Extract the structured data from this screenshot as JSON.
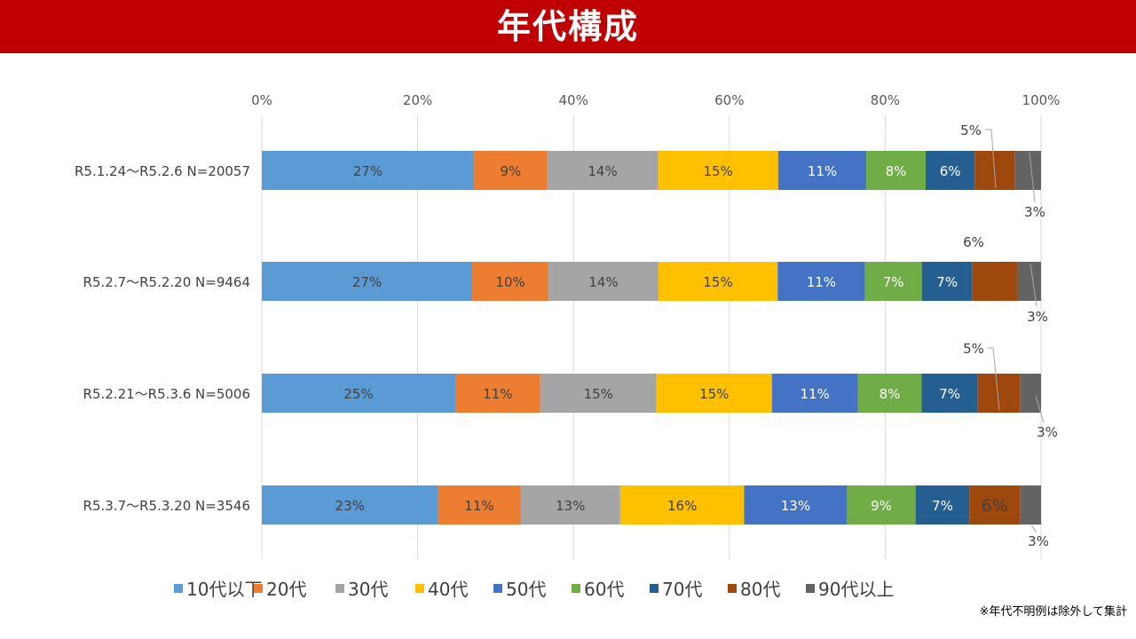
{
  "header": {
    "title": "年代構成"
  },
  "footnote": "※年代不明例は除外して集計",
  "colors": {
    "header_bg": "#c00000",
    "series": [
      "#5b9bd5",
      "#ed7d31",
      "#a5a5a5",
      "#ffc000",
      "#4472c4",
      "#70ad47",
      "#255e91",
      "#9e480e",
      "#636363"
    ]
  },
  "chart_data": {
    "type": "bar",
    "orientation": "horizontal",
    "stacked": "percent",
    "xlim": [
      0,
      100
    ],
    "x_ticks": [
      "0%",
      "20%",
      "40%",
      "60%",
      "80%",
      "100%"
    ],
    "x_tick_values": [
      0,
      20,
      40,
      60,
      80,
      100
    ],
    "grid": true,
    "legend_position": "bottom",
    "categories": [
      "R5.1.24～R5.2.6  N=20057",
      "R5.2.7～R5.2.20  N=9464",
      "R5.2.21～R5.3.6  N=5006",
      "R5.3.7～R5.3.20  N=3546"
    ],
    "series": [
      {
        "name": "10代以下",
        "values": [
          27.2,
          27.0,
          24.8,
          22.6
        ],
        "labels": [
          "27%",
          "27%",
          "25%",
          "23%"
        ]
      },
      {
        "name": "20代",
        "values": [
          9.4,
          9.8,
          10.9,
          10.6
        ],
        "labels": [
          "9%",
          "10%",
          "11%",
          "11%"
        ]
      },
      {
        "name": "30代",
        "values": [
          14.2,
          14.1,
          14.9,
          12.8
        ],
        "labels": [
          "14%",
          "14%",
          "15%",
          "13%"
        ]
      },
      {
        "name": "40代",
        "values": [
          15.4,
          15.3,
          14.8,
          15.9
        ],
        "labels": [
          "15%",
          "15%",
          "15%",
          "16%"
        ]
      },
      {
        "name": "50代",
        "values": [
          11.3,
          11.2,
          11.0,
          13.2
        ],
        "labels": [
          "11%",
          "11%",
          "11%",
          "13%"
        ]
      },
      {
        "name": "60代",
        "values": [
          7.6,
          7.3,
          8.2,
          8.8
        ],
        "labels": [
          "8%",
          "7%",
          "8%",
          "9%"
        ]
      },
      {
        "name": "70代",
        "values": [
          6.3,
          6.5,
          7.2,
          6.9
        ],
        "labels": [
          "6%",
          "7%",
          "7%",
          "7%"
        ]
      },
      {
        "name": "80代",
        "values": [
          5.1,
          5.8,
          5.4,
          6.5
        ],
        "labels": [
          "5%",
          "6%",
          "5%",
          "6%"
        ]
      },
      {
        "name": "90代以上",
        "values": [
          3.4,
          3.0,
          2.7,
          2.7
        ],
        "labels": [
          "3%",
          "3%",
          "3%",
          "3%"
        ]
      }
    ]
  }
}
